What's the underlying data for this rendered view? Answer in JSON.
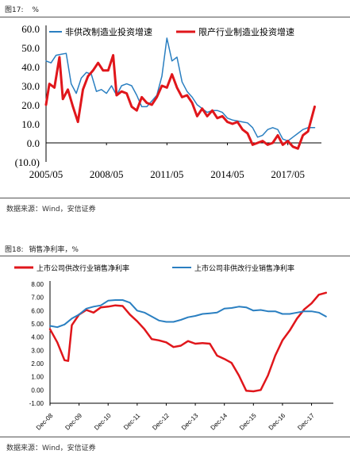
{
  "figures": [
    {
      "label": "图17:",
      "suffix": "%",
      "source": "数据来源：Wind，安信证券"
    },
    {
      "label": "图18:",
      "suffix": "销售净利率，%",
      "source": "数据来源：Wind，安信证券"
    }
  ],
  "colors": {
    "blue": "#2a7fc1",
    "red": "#e0161b"
  },
  "chart_data": [
    {
      "type": "line",
      "title": "",
      "ylim": [
        -10,
        60
      ],
      "y_ticks": [
        "60.0",
        "50.0",
        "40.0",
        "30.0",
        "20.0",
        "10.0",
        "0.0",
        "(10.0)"
      ],
      "y_tick_values": [
        60,
        50,
        40,
        30,
        20,
        10,
        0,
        -10
      ],
      "x_ticks": [
        "2005/05",
        "2008/05",
        "2011/05",
        "2014/05",
        "2017/05"
      ],
      "x_tick_index": [
        0,
        36,
        72,
        108,
        144
      ],
      "x_count": 165,
      "legend_position": "top",
      "series": [
        {
          "name": "非供改制造业投资增速",
          "color": "#2a7fc1",
          "points": [
            [
              0,
              43
            ],
            [
              3,
              42
            ],
            [
              6,
              46
            ],
            [
              9,
              46.5
            ],
            [
              12,
              47
            ],
            [
              15,
              31
            ],
            [
              18,
              26
            ],
            [
              21,
              34
            ],
            [
              24,
              37
            ],
            [
              27,
              36
            ],
            [
              30,
              27
            ],
            [
              33,
              28
            ],
            [
              36,
              26
            ],
            [
              39,
              30
            ],
            [
              42,
              25
            ],
            [
              45,
              30
            ],
            [
              48,
              31
            ],
            [
              51,
              30
            ],
            [
              54,
              25
            ],
            [
              57,
              19
            ],
            [
              60,
              19
            ],
            [
              63,
              22
            ],
            [
              66,
              25
            ],
            [
              69,
              35
            ],
            [
              72,
              55
            ],
            [
              75,
              43
            ],
            [
              78,
              45
            ],
            [
              81,
              32
            ],
            [
              84,
              27
            ],
            [
              87,
              24
            ],
            [
              90,
              20
            ],
            [
              93,
              18
            ],
            [
              96,
              16
            ],
            [
              99,
              17
            ],
            [
              102,
              17
            ],
            [
              105,
              16
            ],
            [
              108,
              13
            ],
            [
              111,
              12
            ],
            [
              114,
              11.5
            ],
            [
              117,
              11
            ],
            [
              120,
              10.5
            ],
            [
              123,
              8
            ],
            [
              126,
              3
            ],
            [
              129,
              4
            ],
            [
              132,
              7
            ],
            [
              135,
              8
            ],
            [
              138,
              7
            ],
            [
              141,
              2
            ],
            [
              144,
              1
            ],
            [
              147,
              3
            ],
            [
              150,
              5
            ],
            [
              153,
              7
            ],
            [
              156,
              8
            ],
            [
              160,
              8
            ]
          ]
        },
        {
          "name": "限产行业制造业投资增速",
          "color": "#e0161b",
          "points": [
            [
              0,
              20
            ],
            [
              2,
              31
            ],
            [
              5,
              29
            ],
            [
              8,
              45
            ],
            [
              10,
              23
            ],
            [
              13,
              28
            ],
            [
              16,
              19
            ],
            [
              19,
              11
            ],
            [
              22,
              28
            ],
            [
              25,
              35
            ],
            [
              28,
              38
            ],
            [
              31,
              42
            ],
            [
              34,
              38
            ],
            [
              37,
              38
            ],
            [
              40,
              46
            ],
            [
              42,
              25
            ],
            [
              45,
              27
            ],
            [
              48,
              26
            ],
            [
              51,
              19
            ],
            [
              54,
              17
            ],
            [
              57,
              24
            ],
            [
              60,
              21
            ],
            [
              63,
              20
            ],
            [
              66,
              24
            ],
            [
              69,
              30
            ],
            [
              72,
              29
            ],
            [
              75,
              36
            ],
            [
              78,
              29
            ],
            [
              81,
              24
            ],
            [
              84,
              25
            ],
            [
              87,
              21
            ],
            [
              90,
              14
            ],
            [
              93,
              18
            ],
            [
              96,
              14
            ],
            [
              99,
              17
            ],
            [
              102,
              13
            ],
            [
              105,
              14
            ],
            [
              108,
              11
            ],
            [
              111,
              10
            ],
            [
              114,
              11
            ],
            [
              117,
              7
            ],
            [
              120,
              5
            ],
            [
              123,
              -1
            ],
            [
              126,
              0
            ],
            [
              129,
              1
            ],
            [
              132,
              -1
            ],
            [
              135,
              0
            ],
            [
              138,
              4
            ],
            [
              141,
              -1
            ],
            [
              144,
              1
            ],
            [
              147,
              -2
            ],
            [
              150,
              -3
            ],
            [
              153,
              4
            ],
            [
              156,
              6
            ],
            [
              160,
              19
            ]
          ]
        }
      ]
    },
    {
      "type": "line",
      "title": "",
      "ylim": [
        -1,
        8
      ],
      "y_ticks": [
        "8.00",
        "7.00",
        "6.00",
        "5.00",
        "4.00",
        "3.00",
        "2.00",
        "1.00",
        "0.00",
        "-1.00"
      ],
      "y_tick_values": [
        8,
        7,
        6,
        5,
        4,
        3,
        2,
        1,
        0,
        -1
      ],
      "x_ticks": [
        "Dec-08",
        "Dec-09",
        "Dec-10",
        "Dec-11",
        "Dec-12",
        "Dec-13",
        "Dec-14",
        "Dec-15",
        "Dec-16",
        "Dec-17"
      ],
      "x_tick_index": [
        0,
        4,
        8,
        12,
        16,
        20,
        24,
        28,
        32,
        36
      ],
      "x_count": 40,
      "legend_position": "top",
      "series": [
        {
          "name": "上市公司供改行业销售净利率",
          "color": "#e0161b",
          "points": [
            [
              0,
              4.6
            ],
            [
              1,
              3.6
            ],
            [
              2,
              2.25
            ],
            [
              2.5,
              2.2
            ],
            [
              3,
              4.9
            ],
            [
              4,
              5.7
            ],
            [
              5,
              6.05
            ],
            [
              6,
              5.85
            ],
            [
              7,
              6.25
            ],
            [
              8,
              6.3
            ],
            [
              9,
              6.4
            ],
            [
              10,
              6.35
            ],
            [
              11,
              5.7
            ],
            [
              12,
              5.2
            ],
            [
              13,
              4.6
            ],
            [
              14,
              3.85
            ],
            [
              15,
              3.75
            ],
            [
              16,
              3.6
            ],
            [
              17,
              3.25
            ],
            [
              18,
              3.35
            ],
            [
              19,
              3.7
            ],
            [
              20,
              3.5
            ],
            [
              21,
              3.55
            ],
            [
              22,
              3.5
            ],
            [
              23,
              2.6
            ],
            [
              24,
              2.35
            ],
            [
              25,
              2.05
            ],
            [
              26,
              1.1
            ],
            [
              27,
              -0.05
            ],
            [
              28,
              -0.1
            ],
            [
              29,
              0.0
            ],
            [
              30,
              1.1
            ],
            [
              31,
              2.6
            ],
            [
              32,
              3.75
            ],
            [
              33,
              4.5
            ],
            [
              34,
              5.4
            ],
            [
              35,
              6.1
            ],
            [
              36,
              6.55
            ],
            [
              37,
              7.2
            ],
            [
              38,
              7.35
            ]
          ]
        },
        {
          "name": "上市公司非供改行业销售净利率",
          "color": "#2a7fc1",
          "points": [
            [
              0,
              4.85
            ],
            [
              1,
              4.75
            ],
            [
              2,
              4.95
            ],
            [
              3,
              5.4
            ],
            [
              4,
              5.7
            ],
            [
              5,
              6.15
            ],
            [
              6,
              6.3
            ],
            [
              7,
              6.4
            ],
            [
              8,
              6.75
            ],
            [
              9,
              6.8
            ],
            [
              10,
              6.8
            ],
            [
              11,
              6.6
            ],
            [
              12,
              6.0
            ],
            [
              13,
              5.85
            ],
            [
              14,
              5.55
            ],
            [
              15,
              5.25
            ],
            [
              16,
              5.15
            ],
            [
              17,
              5.15
            ],
            [
              18,
              5.3
            ],
            [
              19,
              5.5
            ],
            [
              20,
              5.6
            ],
            [
              21,
              5.75
            ],
            [
              22,
              5.8
            ],
            [
              23,
              5.85
            ],
            [
              24,
              6.15
            ],
            [
              25,
              6.2
            ],
            [
              26,
              6.3
            ],
            [
              27,
              6.25
            ],
            [
              28,
              6.0
            ],
            [
              29,
              6.05
            ],
            [
              30,
              5.95
            ],
            [
              31,
              5.95
            ],
            [
              32,
              5.75
            ],
            [
              33,
              5.75
            ],
            [
              34,
              5.85
            ],
            [
              35,
              5.95
            ],
            [
              36,
              5.95
            ],
            [
              37,
              5.85
            ],
            [
              38,
              5.55
            ]
          ]
        }
      ]
    }
  ]
}
